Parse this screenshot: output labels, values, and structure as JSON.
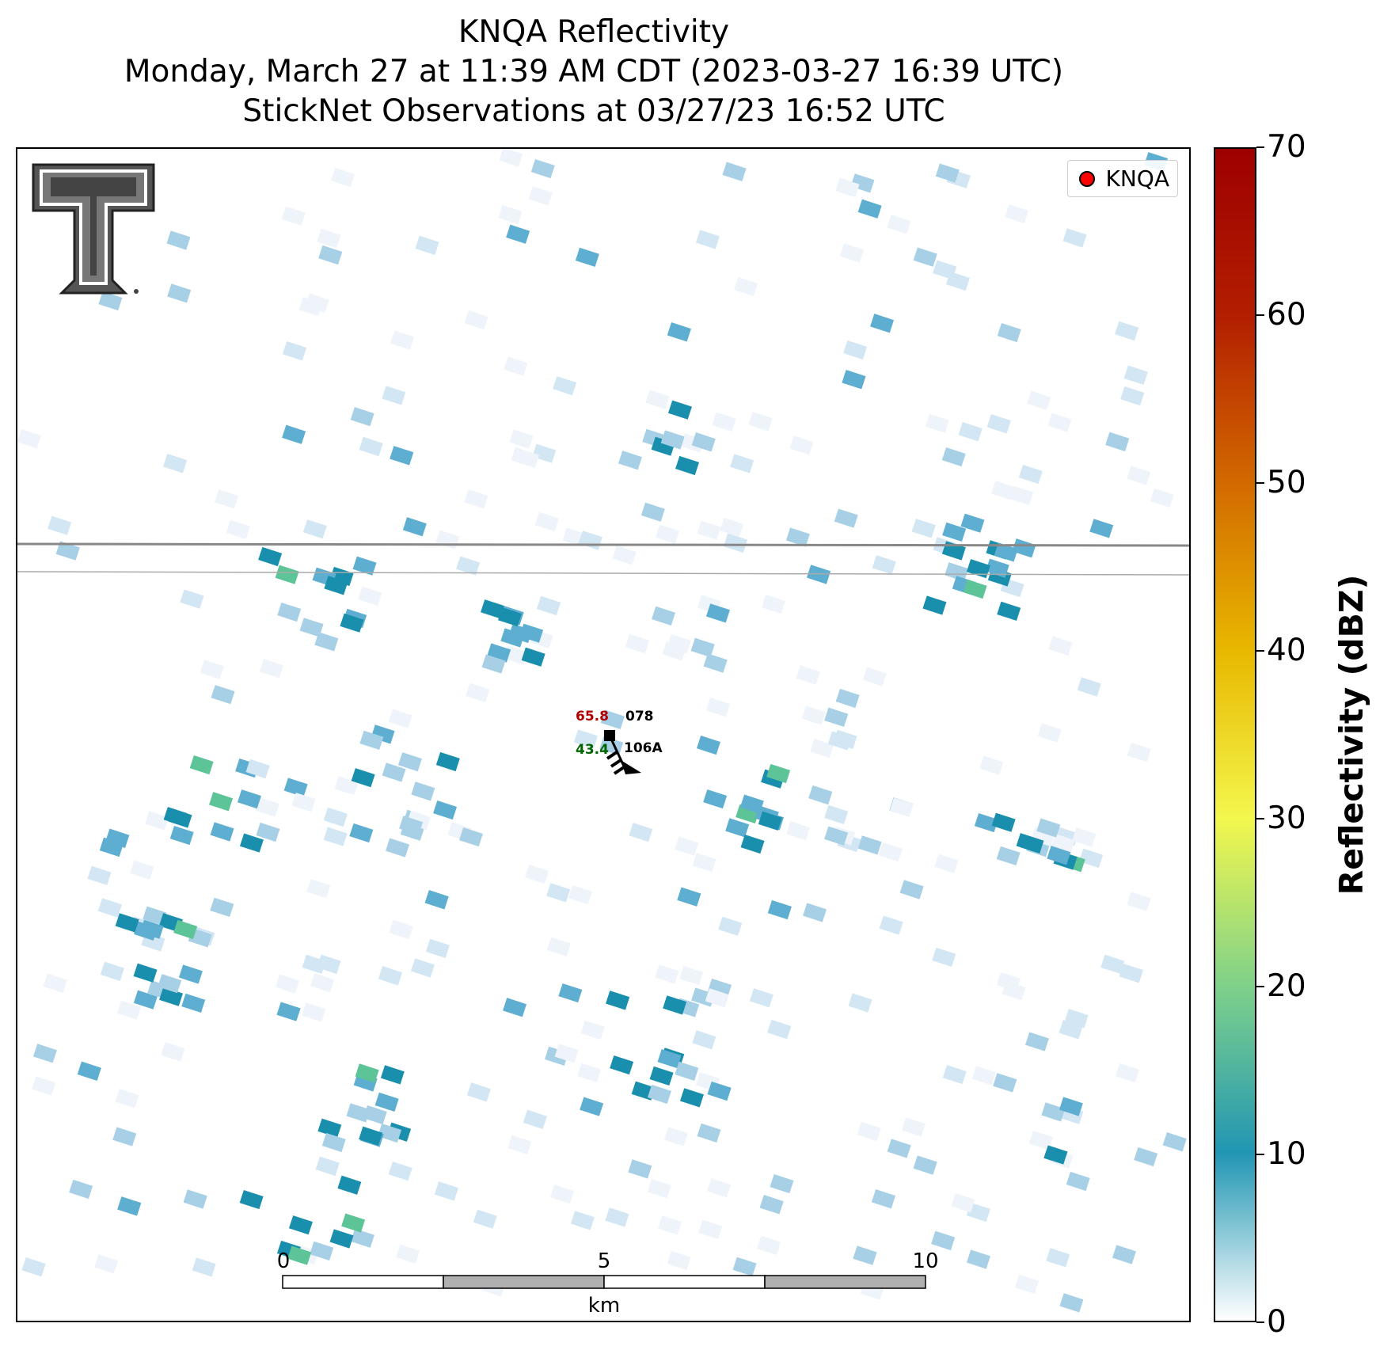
{
  "title": {
    "line1": "KNQA Reflectivity",
    "line2": "Monday, March 27 at 11:39 AM CDT (2023-03-27 16:39 UTC)",
    "line3": "StickNet Observations at 03/27/23 16:52 UTC"
  },
  "legend": {
    "label": "KNQA",
    "marker_color": "#ff0000"
  },
  "station": {
    "temperature": "65.8",
    "dewpoint": "43.4",
    "pressure_code": "078",
    "station_id": "106A",
    "temperature_color": "#b00000",
    "dewpoint_color": "#006400"
  },
  "colorbar": {
    "label": "Reflectivity (dBZ)",
    "min": 0,
    "max": 70,
    "ticks": [
      "0",
      "10",
      "20",
      "30",
      "40",
      "50",
      "60",
      "70"
    ],
    "colors": [
      "#ffffff",
      "#2196b3",
      "#7fd18a",
      "#f3f74d",
      "#e8b800",
      "#d36a00",
      "#b31e00",
      "#9e0000"
    ]
  },
  "scalebar": {
    "labels": [
      "0",
      "5",
      "10"
    ],
    "unit": "km"
  },
  "palette": {
    "very_light": "#eef4fa",
    "light": "#d3e6f3",
    "mid": "#a7d0e6",
    "blue": "#5eaed2",
    "teal": "#1a8fad",
    "green": "#5cc496",
    "boundary": "#888888"
  }
}
